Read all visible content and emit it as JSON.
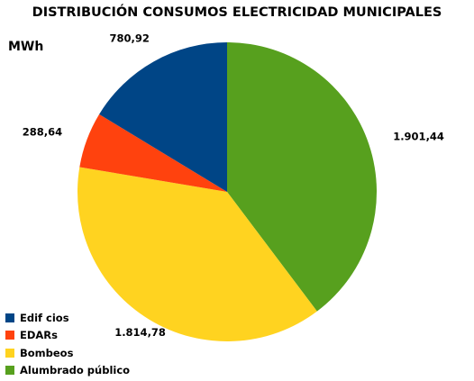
{
  "chart_data": {
    "type": "pie",
    "title": "DISTRIBUCIÓN CONSUMOS ELECTRICIDAD MUNICIPALES",
    "unit": "MWh",
    "start_angle_deg": 0,
    "direction": "clockwise",
    "slices": [
      {
        "name": "Alumbrado público",
        "value": 1901.44,
        "label": "1.901,44",
        "color": "#57a01e"
      },
      {
        "name": "Bombeos",
        "value": 1814.78,
        "label": "1.814,78",
        "color": "#ffd320"
      },
      {
        "name": "EDARs",
        "value": 288.64,
        "label": "288,64",
        "color": "#ff420e"
      },
      {
        "name": "Edif cios",
        "value": 780.92,
        "label": "780,92",
        "color": "#004586"
      }
    ],
    "legend": {
      "placement": "bottom-left",
      "order": [
        "Edif cios",
        "EDARs",
        "Bombeos",
        "Alumbrado público"
      ]
    }
  }
}
